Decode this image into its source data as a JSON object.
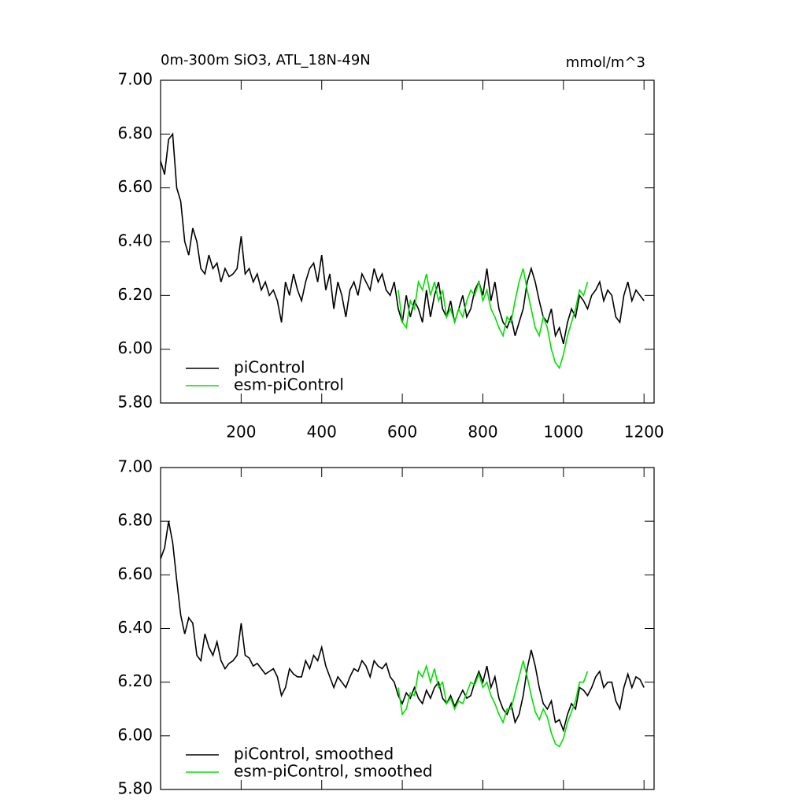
{
  "chart_data": [
    {
      "type": "line",
      "title": "0m-300m SiO3, ATL_18N-49N",
      "units": "mmol/m^3",
      "x": [
        0,
        10,
        20,
        30,
        40,
        50,
        60,
        70,
        80,
        90,
        100,
        110,
        120,
        130,
        140,
        150,
        160,
        170,
        180,
        190,
        200,
        210,
        220,
        230,
        240,
        250,
        260,
        270,
        280,
        290,
        300,
        310,
        320,
        330,
        340,
        350,
        360,
        370,
        380,
        390,
        400,
        410,
        420,
        430,
        440,
        450,
        460,
        470,
        480,
        490,
        500,
        510,
        520,
        530,
        540,
        550,
        560,
        570,
        580,
        590,
        600,
        610,
        620,
        630,
        640,
        650,
        660,
        670,
        680,
        690,
        700,
        710,
        720,
        730,
        740,
        750,
        760,
        770,
        780,
        790,
        800,
        810,
        820,
        830,
        840,
        850,
        860,
        870,
        880,
        890,
        900,
        910,
        920,
        930,
        940,
        950,
        960,
        970,
        980,
        990,
        1000,
        1010,
        1020,
        1030,
        1040,
        1050,
        1060,
        1070,
        1080,
        1090,
        1100,
        1110,
        1120,
        1130,
        1140,
        1150,
        1160,
        1170,
        1180,
        1190,
        1200
      ],
      "series": [
        {
          "name": "piControl",
          "color": "#000000",
          "values": [
            6.7,
            6.65,
            6.78,
            6.8,
            6.6,
            6.55,
            6.4,
            6.35,
            6.45,
            6.4,
            6.3,
            6.28,
            6.35,
            6.3,
            6.32,
            6.25,
            6.3,
            6.27,
            6.28,
            6.3,
            6.42,
            6.28,
            6.3,
            6.25,
            6.28,
            6.22,
            6.25,
            6.2,
            6.22,
            6.18,
            6.1,
            6.25,
            6.2,
            6.28,
            6.22,
            6.18,
            6.25,
            6.3,
            6.32,
            6.25,
            6.35,
            6.22,
            6.28,
            6.15,
            6.25,
            6.2,
            6.12,
            6.22,
            6.25,
            6.2,
            6.28,
            6.25,
            6.22,
            6.3,
            6.25,
            6.28,
            6.22,
            6.2,
            6.25,
            6.15,
            6.1,
            6.2,
            6.12,
            6.18,
            6.15,
            6.1,
            6.22,
            6.12,
            6.2,
            6.25,
            6.15,
            6.12,
            6.18,
            6.1,
            6.15,
            6.2,
            6.12,
            6.15,
            6.22,
            6.25,
            6.2,
            6.3,
            6.18,
            6.25,
            6.15,
            6.1,
            6.08,
            6.12,
            6.05,
            6.1,
            6.15,
            6.25,
            6.3,
            6.25,
            6.18,
            6.12,
            6.1,
            6.15,
            6.05,
            6.08,
            6.02,
            6.1,
            6.15,
            6.12,
            6.2,
            6.18,
            6.15,
            6.2,
            6.22,
            6.25,
            6.18,
            6.22,
            6.2,
            6.12,
            6.1,
            6.2,
            6.25,
            6.18,
            6.22,
            6.2,
            6.18
          ]
        },
        {
          "name": "esm-piControl",
          "color": "#00e000",
          "values": [
            null,
            null,
            null,
            null,
            null,
            null,
            null,
            null,
            null,
            null,
            null,
            null,
            null,
            null,
            null,
            null,
            null,
            null,
            null,
            null,
            null,
            null,
            null,
            null,
            null,
            null,
            null,
            null,
            null,
            null,
            null,
            null,
            null,
            null,
            null,
            null,
            null,
            null,
            null,
            null,
            null,
            null,
            null,
            null,
            null,
            null,
            null,
            null,
            null,
            null,
            null,
            null,
            null,
            null,
            null,
            null,
            null,
            null,
            null,
            6.22,
            6.1,
            6.08,
            6.18,
            6.15,
            6.25,
            6.22,
            6.28,
            6.2,
            6.25,
            6.18,
            6.22,
            6.12,
            6.15,
            6.1,
            6.15,
            6.12,
            6.18,
            6.22,
            6.2,
            6.25,
            6.18,
            6.22,
            6.15,
            6.12,
            6.08,
            6.05,
            6.12,
            6.1,
            6.18,
            6.25,
            6.3,
            6.22,
            6.15,
            6.08,
            6.05,
            6.12,
            6.08,
            6.0,
            5.95,
            5.93,
            5.98,
            6.05,
            6.1,
            6.15,
            6.22,
            6.2,
            6.25,
            null,
            null,
            null,
            null,
            null,
            null,
            null,
            null,
            null,
            null,
            null,
            null,
            null,
            null
          ]
        }
      ],
      "xlim": [
        0,
        1225
      ],
      "xticks": [
        200,
        400,
        600,
        800,
        1000,
        1200
      ],
      "ylim": [
        5.8,
        7.0
      ],
      "yticks": [
        {
          "value": 5.8,
          "label": "5.80"
        },
        {
          "value": 6.0,
          "label": "6.00"
        },
        {
          "value": 6.2,
          "label": "6.20"
        },
        {
          "value": 6.4,
          "label": "6.40"
        },
        {
          "value": 6.6,
          "label": "6.60"
        },
        {
          "value": 6.8,
          "label": "6.80"
        },
        {
          "value": 7.0,
          "label": "7.00"
        }
      ]
    },
    {
      "type": "line",
      "x": [
        0,
        10,
        20,
        30,
        40,
        50,
        60,
        70,
        80,
        90,
        100,
        110,
        120,
        130,
        140,
        150,
        160,
        170,
        180,
        190,
        200,
        210,
        220,
        230,
        240,
        250,
        260,
        270,
        280,
        290,
        300,
        310,
        320,
        330,
        340,
        350,
        360,
        370,
        380,
        390,
        400,
        410,
        420,
        430,
        440,
        450,
        460,
        470,
        480,
        490,
        500,
        510,
        520,
        530,
        540,
        550,
        560,
        570,
        580,
        590,
        600,
        610,
        620,
        630,
        640,
        650,
        660,
        670,
        680,
        690,
        700,
        710,
        720,
        730,
        740,
        750,
        760,
        770,
        780,
        790,
        800,
        810,
        820,
        830,
        840,
        850,
        860,
        870,
        880,
        890,
        900,
        910,
        920,
        930,
        940,
        950,
        960,
        970,
        980,
        990,
        1000,
        1010,
        1020,
        1030,
        1040,
        1050,
        1060,
        1070,
        1080,
        1090,
        1100,
        1110,
        1120,
        1130,
        1140,
        1150,
        1160,
        1170,
        1180,
        1190,
        1200
      ],
      "series": [
        {
          "name": "piControl, smoothed",
          "color": "#000000",
          "values": [
            6.66,
            6.7,
            6.8,
            6.72,
            6.58,
            6.45,
            6.38,
            6.44,
            6.42,
            6.3,
            6.28,
            6.38,
            6.33,
            6.3,
            6.35,
            6.28,
            6.25,
            6.27,
            6.28,
            6.3,
            6.42,
            6.3,
            6.29,
            6.26,
            6.27,
            6.25,
            6.23,
            6.24,
            6.25,
            6.22,
            6.15,
            6.18,
            6.25,
            6.23,
            6.22,
            6.22,
            6.28,
            6.25,
            6.3,
            6.28,
            6.33,
            6.26,
            6.22,
            6.18,
            6.22,
            6.2,
            6.18,
            6.22,
            6.25,
            6.24,
            6.28,
            6.26,
            6.22,
            6.28,
            6.26,
            6.25,
            6.27,
            6.22,
            6.2,
            6.15,
            6.12,
            6.16,
            6.14,
            6.18,
            6.14,
            6.12,
            6.17,
            6.14,
            6.18,
            6.2,
            6.14,
            6.12,
            6.15,
            6.11,
            6.14,
            6.17,
            6.14,
            6.15,
            6.2,
            6.24,
            6.2,
            6.26,
            6.18,
            6.22,
            6.14,
            6.1,
            6.08,
            6.12,
            6.05,
            6.08,
            6.15,
            6.25,
            6.32,
            6.26,
            6.18,
            6.12,
            6.1,
            6.13,
            6.05,
            6.06,
            6.02,
            6.08,
            6.12,
            6.1,
            6.18,
            6.17,
            6.15,
            6.18,
            6.22,
            6.24,
            6.18,
            6.2,
            6.2,
            6.13,
            6.1,
            6.18,
            6.23,
            6.18,
            6.22,
            6.21,
            6.18
          ]
        },
        {
          "name": "esm-piControl, smoothed",
          "color": "#00e000",
          "values": [
            null,
            null,
            null,
            null,
            null,
            null,
            null,
            null,
            null,
            null,
            null,
            null,
            null,
            null,
            null,
            null,
            null,
            null,
            null,
            null,
            null,
            null,
            null,
            null,
            null,
            null,
            null,
            null,
            null,
            null,
            null,
            null,
            null,
            null,
            null,
            null,
            null,
            null,
            null,
            null,
            null,
            null,
            null,
            null,
            null,
            null,
            null,
            null,
            null,
            null,
            null,
            null,
            null,
            null,
            null,
            null,
            null,
            null,
            null,
            6.18,
            6.08,
            6.1,
            6.16,
            6.15,
            6.24,
            6.22,
            6.26,
            6.2,
            6.25,
            6.18,
            6.2,
            6.12,
            6.14,
            6.1,
            6.13,
            6.12,
            6.16,
            6.2,
            6.19,
            6.23,
            6.18,
            6.2,
            6.15,
            6.12,
            6.08,
            6.05,
            6.1,
            6.1,
            6.16,
            6.22,
            6.28,
            6.22,
            6.15,
            6.09,
            6.06,
            6.1,
            6.07,
            6.01,
            5.97,
            5.96,
            5.99,
            6.05,
            6.09,
            6.13,
            6.2,
            6.2,
            6.24,
            null,
            null,
            null,
            null,
            null,
            null,
            null,
            null,
            null,
            null,
            null,
            null,
            null,
            null
          ]
        }
      ],
      "xlim": [
        0,
        1225
      ],
      "xticks": [
        200,
        400,
        600,
        800,
        1000,
        1200
      ],
      "ylim": [
        5.8,
        7.0
      ],
      "yticks": [
        {
          "value": 5.8,
          "label": "5.80"
        },
        {
          "value": 6.0,
          "label": "6.00"
        },
        {
          "value": 6.2,
          "label": "6.20"
        },
        {
          "value": 6.4,
          "label": "6.40"
        },
        {
          "value": 6.6,
          "label": "6.60"
        },
        {
          "value": 6.8,
          "label": "6.80"
        },
        {
          "value": 7.0,
          "label": "7.00"
        }
      ]
    }
  ]
}
